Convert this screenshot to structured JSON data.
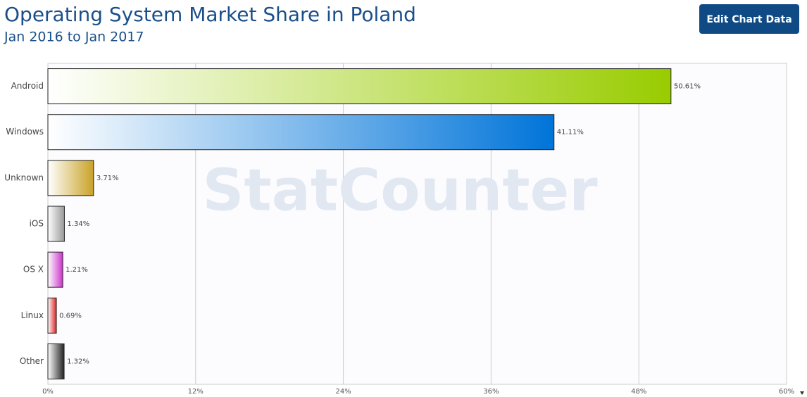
{
  "header": {
    "button": "Edit Chart Data"
  },
  "chart_data": {
    "type": "hbar",
    "title": "Operating System Market Share in Poland",
    "subtitle": "Jan 2016 to Jan 2017",
    "watermark": "StatCounter",
    "categories": [
      "Android",
      "Windows",
      "Unknown",
      "iOS",
      "OS X",
      "Linux",
      "Other"
    ],
    "values": [
      50.61,
      41.11,
      3.71,
      1.34,
      1.21,
      0.69,
      1.32
    ],
    "value_labels": [
      "50.61%",
      "41.11%",
      "3.71%",
      "1.34%",
      "1.21%",
      "0.69%",
      "1.32%"
    ],
    "colors": [
      "#99cc00",
      "#0074d9",
      "#c9a227",
      "#999999",
      "#cc33cc",
      "#dd2222",
      "#222222"
    ],
    "xlim": [
      0,
      60
    ],
    "xticks": [
      {
        "value": 0,
        "label": "0%"
      },
      {
        "value": 12,
        "label": "12%"
      },
      {
        "value": 24,
        "label": "24%"
      },
      {
        "value": 36,
        "label": "36%"
      },
      {
        "value": 48,
        "label": "48%"
      },
      {
        "value": 60,
        "label": "60%"
      }
    ],
    "grid": true
  }
}
